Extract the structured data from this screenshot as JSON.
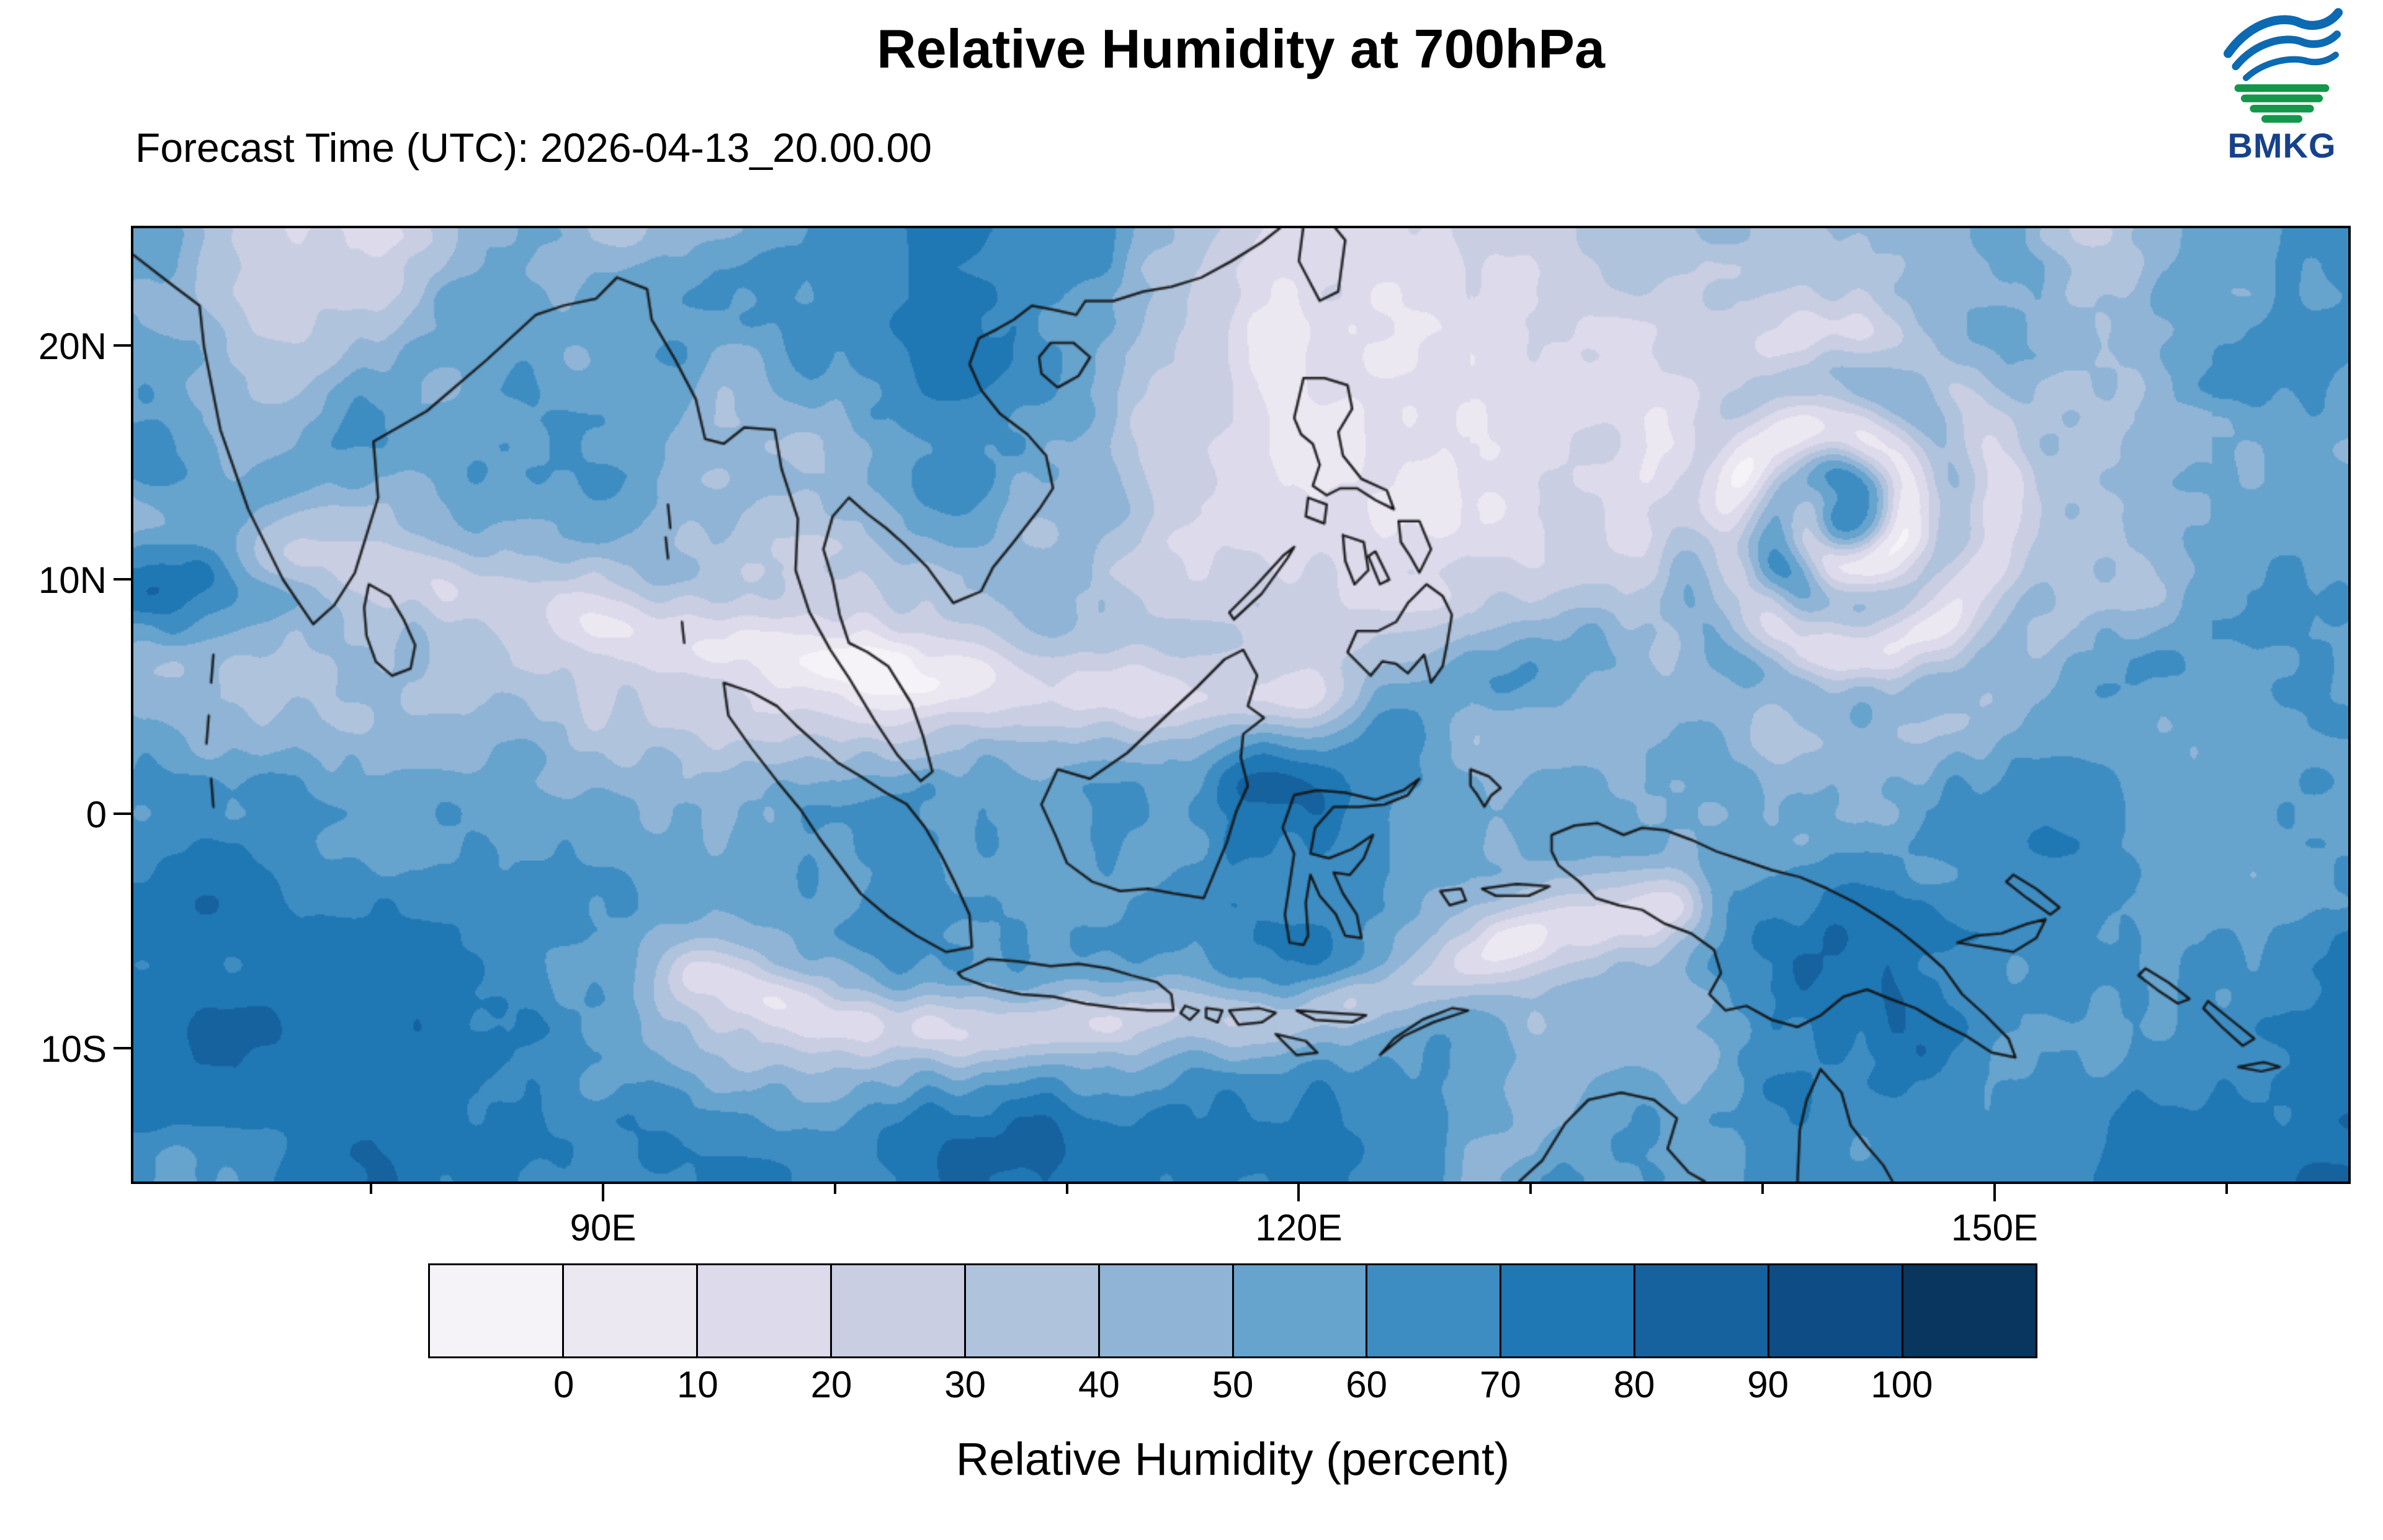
{
  "header": {
    "title": "Relative Humidity at 700hPa",
    "forecast_label": "Forecast Time (UTC): 2026-04-13_20.00.00",
    "logo_text": "BMKG"
  },
  "map": {
    "extent": {
      "lon_min": 69.75,
      "lon_max": 165.25,
      "lat_min": -15.7,
      "lat_max": 25.0
    },
    "lat_ticks": [
      {
        "value": 20,
        "label": "20N"
      },
      {
        "value": 10,
        "label": "10N"
      },
      {
        "value": 0,
        "label": "0"
      },
      {
        "value": -10,
        "label": "10S"
      }
    ],
    "lon_ticks": [
      {
        "value": 90,
        "label": "90E"
      },
      {
        "value": 120,
        "label": "120E"
      },
      {
        "value": 150,
        "label": "150E"
      }
    ],
    "lon_minor_ticks": [
      80,
      100,
      110,
      130,
      140,
      160
    ]
  },
  "colorbar": {
    "title": "Relative Humidity (percent)",
    "levels": [
      0,
      10,
      20,
      30,
      40,
      50,
      60,
      70,
      80,
      90,
      100
    ],
    "tick_labels": [
      "0",
      "10",
      "20",
      "30",
      "40",
      "50",
      "60",
      "70",
      "80",
      "90",
      "100"
    ],
    "colors": [
      "#f6f3f8",
      "#ebe8f1",
      "#dcdaeb",
      "#c9cee3",
      "#b0c3dc",
      "#8fb4d6",
      "#66a3cd",
      "#3d8dc3",
      "#1f78b4",
      "#15629f",
      "#0d4c84",
      "#08365e"
    ]
  }
}
